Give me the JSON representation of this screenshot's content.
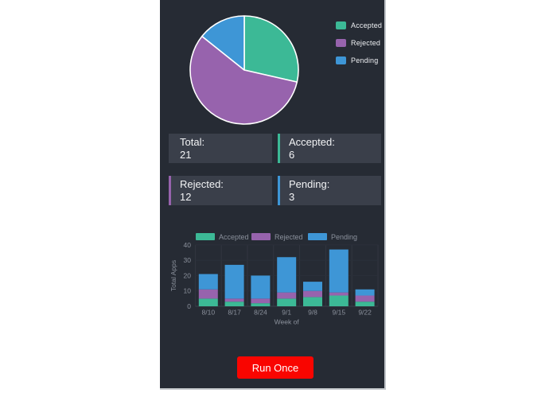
{
  "window": {
    "desktop_bg": "#ffffff",
    "panel_bg": "#262b34",
    "card_bg": "#3a3f4a",
    "text_light": "#f3f4f6",
    "muted_text": "#8b919c",
    "grid_line": "#313640"
  },
  "colors": {
    "accepted": "#3cb996",
    "rejected": "#9763ad",
    "pending": "#3e96d6",
    "run_button": "#f90500"
  },
  "stats": {
    "cards": [
      {
        "label": "Total:",
        "value": "21",
        "accent_color": null
      },
      {
        "label": "Accepted:",
        "value": "6",
        "accent_color": "#3cb996"
      },
      {
        "label": "Rejected:",
        "value": "12",
        "accent_color": "#9763ad"
      },
      {
        "label": "Pending:",
        "value": "3",
        "accent_color": "#3e96d6"
      }
    ]
  },
  "chart_data": [
    {
      "type": "pie",
      "labels": [
        "Accepted",
        "Rejected",
        "Pending"
      ],
      "values": [
        6,
        12,
        3
      ],
      "colors": [
        "#3cb996",
        "#9763ad",
        "#3e96d6"
      ],
      "legend_position": "right",
      "start_angle_deg": 0,
      "direction": "clockwise",
      "slice_border_color": "#ffffff"
    },
    {
      "type": "bar",
      "stacked": true,
      "categories": [
        "8/10",
        "8/17",
        "8/24",
        "9/1",
        "9/8",
        "9/15",
        "9/22"
      ],
      "series": [
        {
          "name": "Accepted",
          "color": "#3cb996",
          "values": [
            5,
            3,
            2,
            5,
            6,
            7,
            3
          ]
        },
        {
          "name": "Rejected",
          "color": "#9763ad",
          "values": [
            6,
            2,
            3,
            4,
            4,
            2,
            4
          ]
        },
        {
          "name": "Pending",
          "color": "#3e96d6",
          "values": [
            10,
            22,
            15,
            23,
            6,
            28,
            4
          ]
        }
      ],
      "totals": [
        21,
        27,
        20,
        32,
        16,
        37,
        11
      ],
      "xlabel": "Week of",
      "ylabel": "Total Apps",
      "yticks": [
        0,
        10,
        20,
        30,
        40
      ],
      "ylim": [
        0,
        40
      ],
      "legend_position": "top",
      "grid": true
    }
  ],
  "button": {
    "label": "Run Once"
  }
}
